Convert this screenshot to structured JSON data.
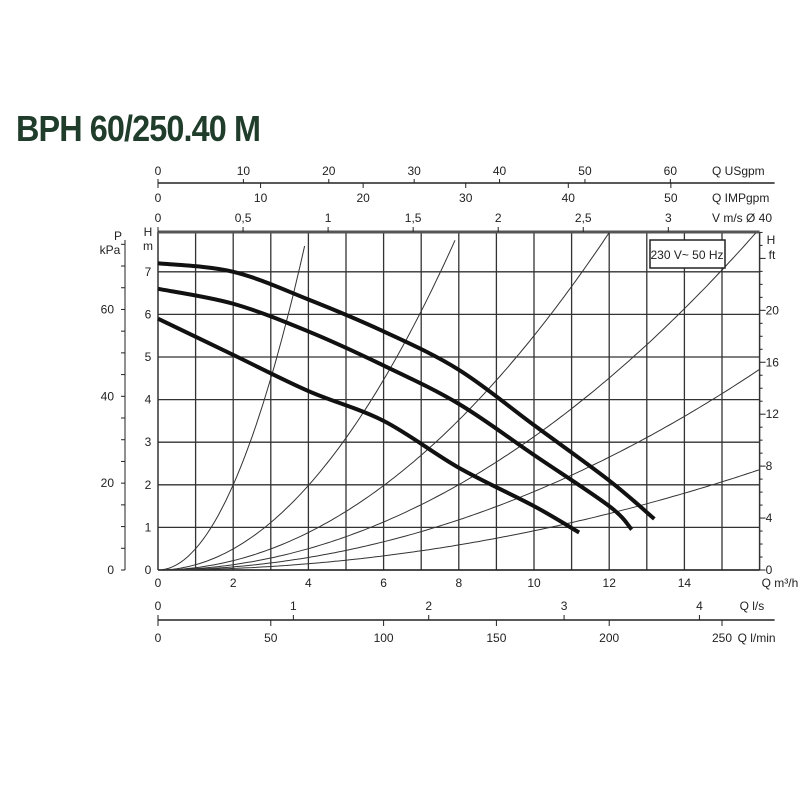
{
  "chart_data": {
    "type": "line",
    "title": "BPH 60/250.40 M",
    "legend_box": "230 V~ 50 Hz",
    "grid": true,
    "x_axis": {
      "label": "Q m³/h",
      "range": [
        0,
        16
      ],
      "ticks": [
        0,
        2,
        4,
        6,
        8,
        10,
        12,
        14
      ]
    },
    "y_axis_left": {
      "label_top": "H",
      "label_bottom": "m",
      "range": [
        0,
        8
      ],
      "ticks": [
        0,
        1,
        2,
        3,
        4,
        5,
        6,
        7
      ]
    },
    "y_axis_kpa": {
      "label_top": "P",
      "label_bottom": "kPa",
      "ticks": [
        0,
        20,
        40,
        60
      ]
    },
    "y_axis_right": {
      "label_top": "H",
      "label_bottom": "ft",
      "ticks": [
        0,
        4,
        8,
        12,
        16,
        20
      ]
    },
    "top_axes": [
      {
        "label": "Q USgpm",
        "ticks": [
          0,
          10,
          20,
          30,
          40,
          50,
          60
        ]
      },
      {
        "label": "Q IMPgpm",
        "ticks": [
          0,
          10,
          20,
          30,
          40,
          50
        ]
      },
      {
        "label": "V m/s Ø 40",
        "ticks": [
          "0",
          "0,5",
          "1",
          "1,5",
          "2",
          "2,5",
          "3"
        ]
      }
    ],
    "bottom_axes": [
      {
        "label": "Q l/s",
        "ticks": [
          0,
          1,
          2,
          3,
          4
        ]
      },
      {
        "label": "Q l/min",
        "ticks": [
          0,
          50,
          100,
          150,
          200,
          250
        ]
      }
    ],
    "series": [
      {
        "x": [
          0,
          2,
          4,
          6,
          8,
          10,
          12,
          13.2
        ],
        "y": [
          7.2,
          7.0,
          6.35,
          5.6,
          4.7,
          3.4,
          2.1,
          1.2
        ]
      },
      {
        "x": [
          0,
          2,
          4,
          6,
          8,
          10,
          12,
          12.6
        ],
        "y": [
          6.6,
          6.25,
          5.6,
          4.8,
          3.9,
          2.7,
          1.5,
          0.95
        ]
      },
      {
        "x": [
          0,
          2,
          4,
          6,
          8,
          10,
          11.2
        ],
        "y": [
          5.9,
          5.05,
          4.2,
          3.5,
          2.4,
          1.5,
          0.88
        ]
      }
    ],
    "system_curves_k": [
      0.5,
      0.124,
      0.055,
      0.0313,
      0.0184,
      0.0092
    ]
  }
}
